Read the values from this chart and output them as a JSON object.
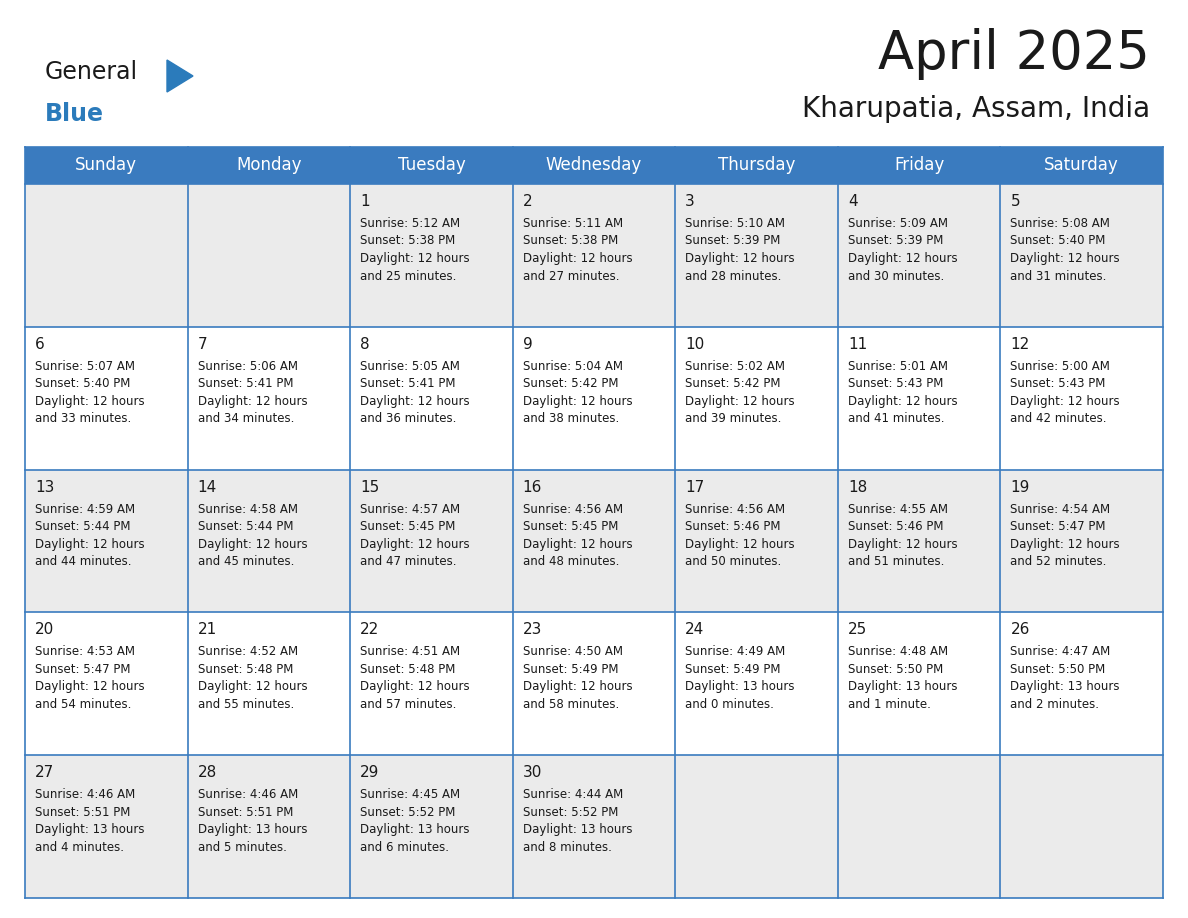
{
  "title": "April 2025",
  "subtitle": "Kharupatia, Assam, India",
  "header_bg": "#3A7BBF",
  "header_text_color": "#FFFFFF",
  "cell_bg_light": "#EBEBEB",
  "cell_bg_white": "#FFFFFF",
  "border_color": "#3A7BBF",
  "day_names": [
    "Sunday",
    "Monday",
    "Tuesday",
    "Wednesday",
    "Thursday",
    "Friday",
    "Saturday"
  ],
  "days": [
    {
      "day": 1,
      "col": 2,
      "row": 0,
      "sunrise": "5:12 AM",
      "sunset": "5:38 PM",
      "daylight": "12 hours and 25 minutes."
    },
    {
      "day": 2,
      "col": 3,
      "row": 0,
      "sunrise": "5:11 AM",
      "sunset": "5:38 PM",
      "daylight": "12 hours and 27 minutes."
    },
    {
      "day": 3,
      "col": 4,
      "row": 0,
      "sunrise": "5:10 AM",
      "sunset": "5:39 PM",
      "daylight": "12 hours and 28 minutes."
    },
    {
      "day": 4,
      "col": 5,
      "row": 0,
      "sunrise": "5:09 AM",
      "sunset": "5:39 PM",
      "daylight": "12 hours and 30 minutes."
    },
    {
      "day": 5,
      "col": 6,
      "row": 0,
      "sunrise": "5:08 AM",
      "sunset": "5:40 PM",
      "daylight": "12 hours and 31 minutes."
    },
    {
      "day": 6,
      "col": 0,
      "row": 1,
      "sunrise": "5:07 AM",
      "sunset": "5:40 PM",
      "daylight": "12 hours and 33 minutes."
    },
    {
      "day": 7,
      "col": 1,
      "row": 1,
      "sunrise": "5:06 AM",
      "sunset": "5:41 PM",
      "daylight": "12 hours and 34 minutes."
    },
    {
      "day": 8,
      "col": 2,
      "row": 1,
      "sunrise": "5:05 AM",
      "sunset": "5:41 PM",
      "daylight": "12 hours and 36 minutes."
    },
    {
      "day": 9,
      "col": 3,
      "row": 1,
      "sunrise": "5:04 AM",
      "sunset": "5:42 PM",
      "daylight": "12 hours and 38 minutes."
    },
    {
      "day": 10,
      "col": 4,
      "row": 1,
      "sunrise": "5:02 AM",
      "sunset": "5:42 PM",
      "daylight": "12 hours and 39 minutes."
    },
    {
      "day": 11,
      "col": 5,
      "row": 1,
      "sunrise": "5:01 AM",
      "sunset": "5:43 PM",
      "daylight": "12 hours and 41 minutes."
    },
    {
      "day": 12,
      "col": 6,
      "row": 1,
      "sunrise": "5:00 AM",
      "sunset": "5:43 PM",
      "daylight": "12 hours and 42 minutes."
    },
    {
      "day": 13,
      "col": 0,
      "row": 2,
      "sunrise": "4:59 AM",
      "sunset": "5:44 PM",
      "daylight": "12 hours and 44 minutes."
    },
    {
      "day": 14,
      "col": 1,
      "row": 2,
      "sunrise": "4:58 AM",
      "sunset": "5:44 PM",
      "daylight": "12 hours and 45 minutes."
    },
    {
      "day": 15,
      "col": 2,
      "row": 2,
      "sunrise": "4:57 AM",
      "sunset": "5:45 PM",
      "daylight": "12 hours and 47 minutes."
    },
    {
      "day": 16,
      "col": 3,
      "row": 2,
      "sunrise": "4:56 AM",
      "sunset": "5:45 PM",
      "daylight": "12 hours and 48 minutes."
    },
    {
      "day": 17,
      "col": 4,
      "row": 2,
      "sunrise": "4:56 AM",
      "sunset": "5:46 PM",
      "daylight": "12 hours and 50 minutes."
    },
    {
      "day": 18,
      "col": 5,
      "row": 2,
      "sunrise": "4:55 AM",
      "sunset": "5:46 PM",
      "daylight": "12 hours and 51 minutes."
    },
    {
      "day": 19,
      "col": 6,
      "row": 2,
      "sunrise": "4:54 AM",
      "sunset": "5:47 PM",
      "daylight": "12 hours and 52 minutes."
    },
    {
      "day": 20,
      "col": 0,
      "row": 3,
      "sunrise": "4:53 AM",
      "sunset": "5:47 PM",
      "daylight": "12 hours and 54 minutes."
    },
    {
      "day": 21,
      "col": 1,
      "row": 3,
      "sunrise": "4:52 AM",
      "sunset": "5:48 PM",
      "daylight": "12 hours and 55 minutes."
    },
    {
      "day": 22,
      "col": 2,
      "row": 3,
      "sunrise": "4:51 AM",
      "sunset": "5:48 PM",
      "daylight": "12 hours and 57 minutes."
    },
    {
      "day": 23,
      "col": 3,
      "row": 3,
      "sunrise": "4:50 AM",
      "sunset": "5:49 PM",
      "daylight": "12 hours and 58 minutes."
    },
    {
      "day": 24,
      "col": 4,
      "row": 3,
      "sunrise": "4:49 AM",
      "sunset": "5:49 PM",
      "daylight": "13 hours and 0 minutes."
    },
    {
      "day": 25,
      "col": 5,
      "row": 3,
      "sunrise": "4:48 AM",
      "sunset": "5:50 PM",
      "daylight": "13 hours and 1 minute."
    },
    {
      "day": 26,
      "col": 6,
      "row": 3,
      "sunrise": "4:47 AM",
      "sunset": "5:50 PM",
      "daylight": "13 hours and 2 minutes."
    },
    {
      "day": 27,
      "col": 0,
      "row": 4,
      "sunrise": "4:46 AM",
      "sunset": "5:51 PM",
      "daylight": "13 hours and 4 minutes."
    },
    {
      "day": 28,
      "col": 1,
      "row": 4,
      "sunrise": "4:46 AM",
      "sunset": "5:51 PM",
      "daylight": "13 hours and 5 minutes."
    },
    {
      "day": 29,
      "col": 2,
      "row": 4,
      "sunrise": "4:45 AM",
      "sunset": "5:52 PM",
      "daylight": "13 hours and 6 minutes."
    },
    {
      "day": 30,
      "col": 3,
      "row": 4,
      "sunrise": "4:44 AM",
      "sunset": "5:52 PM",
      "daylight": "13 hours and 8 minutes."
    }
  ],
  "logo_text_general": "General",
  "logo_text_blue": "Blue",
  "logo_color_general": "#1a1a1a",
  "logo_color_blue": "#2B7BBB",
  "logo_triangle_color": "#2B7BBB",
  "title_fontsize": 38,
  "subtitle_fontsize": 20,
  "header_fontsize": 12,
  "day_num_fontsize": 11,
  "cell_text_fontsize": 8.5
}
